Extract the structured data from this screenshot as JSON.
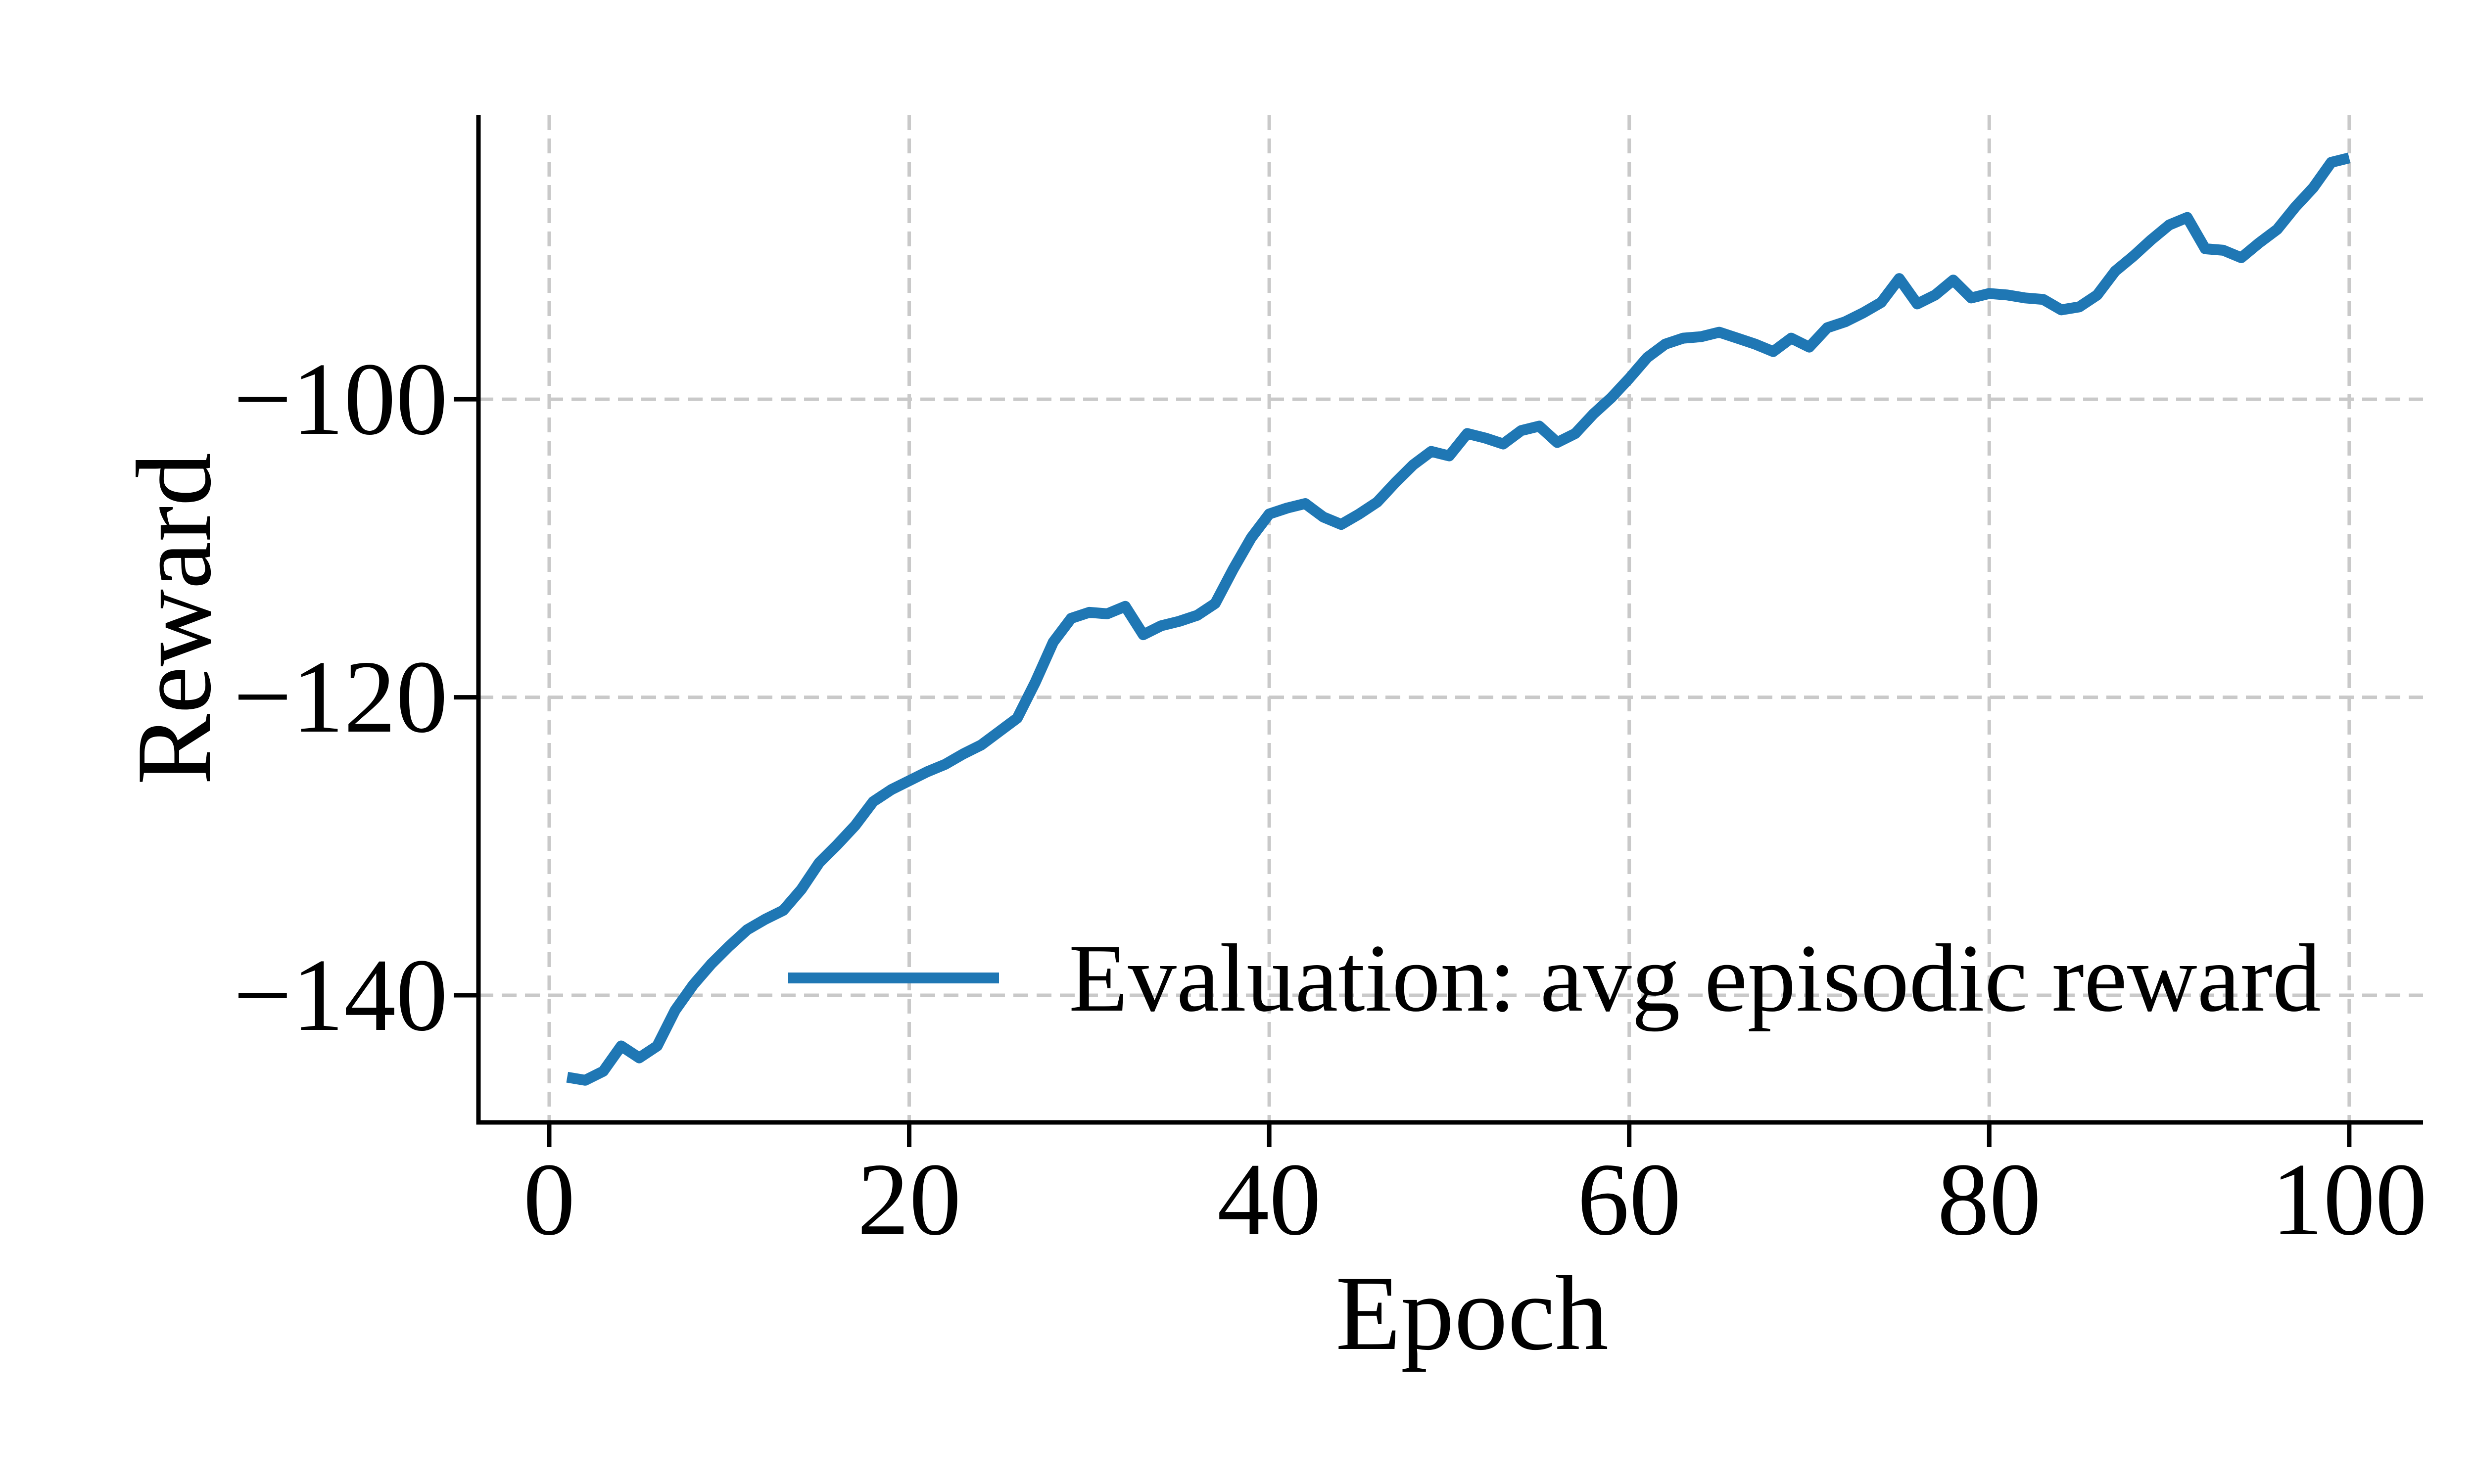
{
  "figure": {
    "background": "#ffffff",
    "title": ""
  },
  "chart_data": {
    "type": "line",
    "title": "",
    "xlabel": "Epoch",
    "ylabel": "Reward",
    "grid": true,
    "grid_style": "dashed",
    "legend_position": "lower center",
    "xlim": [
      -3.93,
      104.1
    ],
    "ylim": [
      -148.53,
      -80.94
    ],
    "xticks": [
      0,
      20,
      40,
      60,
      80,
      100
    ],
    "yticks": [
      -100,
      -120,
      -140
    ],
    "xtick_labels": [
      "0",
      "20",
      "40",
      "60",
      "80",
      "100"
    ],
    "ytick_labels": [
      "−100",
      "−120",
      "−140"
    ],
    "colors": {
      "line": "#1f77b4",
      "grid": "#c9c9c9",
      "spine": "#000000",
      "text": "#000000",
      "background": "#ffffff"
    },
    "x": [
      1,
      2,
      3,
      4,
      5,
      6,
      7,
      8,
      9,
      10,
      11,
      12,
      13,
      14,
      15,
      16,
      17,
      18,
      19,
      20,
      21,
      22,
      23,
      24,
      25,
      26,
      27,
      28,
      29,
      30,
      31,
      32,
      33,
      34,
      35,
      36,
      37,
      38,
      39,
      40,
      41,
      42,
      43,
      44,
      45,
      46,
      47,
      48,
      49,
      50,
      51,
      52,
      53,
      54,
      55,
      56,
      57,
      58,
      59,
      60,
      61,
      62,
      63,
      64,
      65,
      66,
      67,
      68,
      69,
      70,
      71,
      72,
      73,
      74,
      75,
      76,
      77,
      78,
      79,
      80,
      81,
      82,
      83,
      84,
      85,
      86,
      87,
      88,
      89,
      90,
      91,
      92,
      93,
      94,
      95,
      96,
      97,
      98,
      99,
      100
    ],
    "series": [
      {
        "name": "Evaluation: avg episodic reward",
        "color": "#1f77b4",
        "values": [
          -145.5,
          -145.7,
          -145.1,
          -143.4,
          -144.2,
          -143.4,
          -141.0,
          -139.3,
          -137.9,
          -136.7,
          -135.6,
          -134.9,
          -134.3,
          -132.9,
          -131.1,
          -129.9,
          -128.6,
          -127.0,
          -126.2,
          -125.6,
          -125.0,
          -124.5,
          -123.8,
          -123.2,
          -122.3,
          -121.4,
          -119.0,
          -116.3,
          -114.7,
          -114.3,
          -114.4,
          -113.9,
          -115.8,
          -115.2,
          -114.9,
          -114.5,
          -113.7,
          -111.4,
          -109.3,
          -107.7,
          -107.3,
          -107.0,
          -107.9,
          -108.4,
          -107.7,
          -106.9,
          -105.6,
          -104.4,
          -103.5,
          -103.8,
          -102.3,
          -102.6,
          -103.0,
          -102.1,
          -101.8,
          -102.9,
          -102.3,
          -101.0,
          -99.9,
          -98.6,
          -97.2,
          -96.3,
          -95.9,
          -95.8,
          -95.5,
          -95.9,
          -96.3,
          -96.8,
          -95.9,
          -96.5,
          -95.2,
          -94.8,
          -94.2,
          -93.5,
          -91.9,
          -93.6,
          -93.0,
          -92.0,
          -93.2,
          -92.9,
          -93.0,
          -93.2,
          -93.3,
          -94.0,
          -93.8,
          -93.0,
          -91.4,
          -90.4,
          -89.3,
          -88.3,
          -87.8,
          -89.9,
          -90.0,
          -90.5,
          -89.5,
          -88.6,
          -87.1,
          -85.8,
          -84.1,
          -83.8
        ]
      }
    ]
  }
}
